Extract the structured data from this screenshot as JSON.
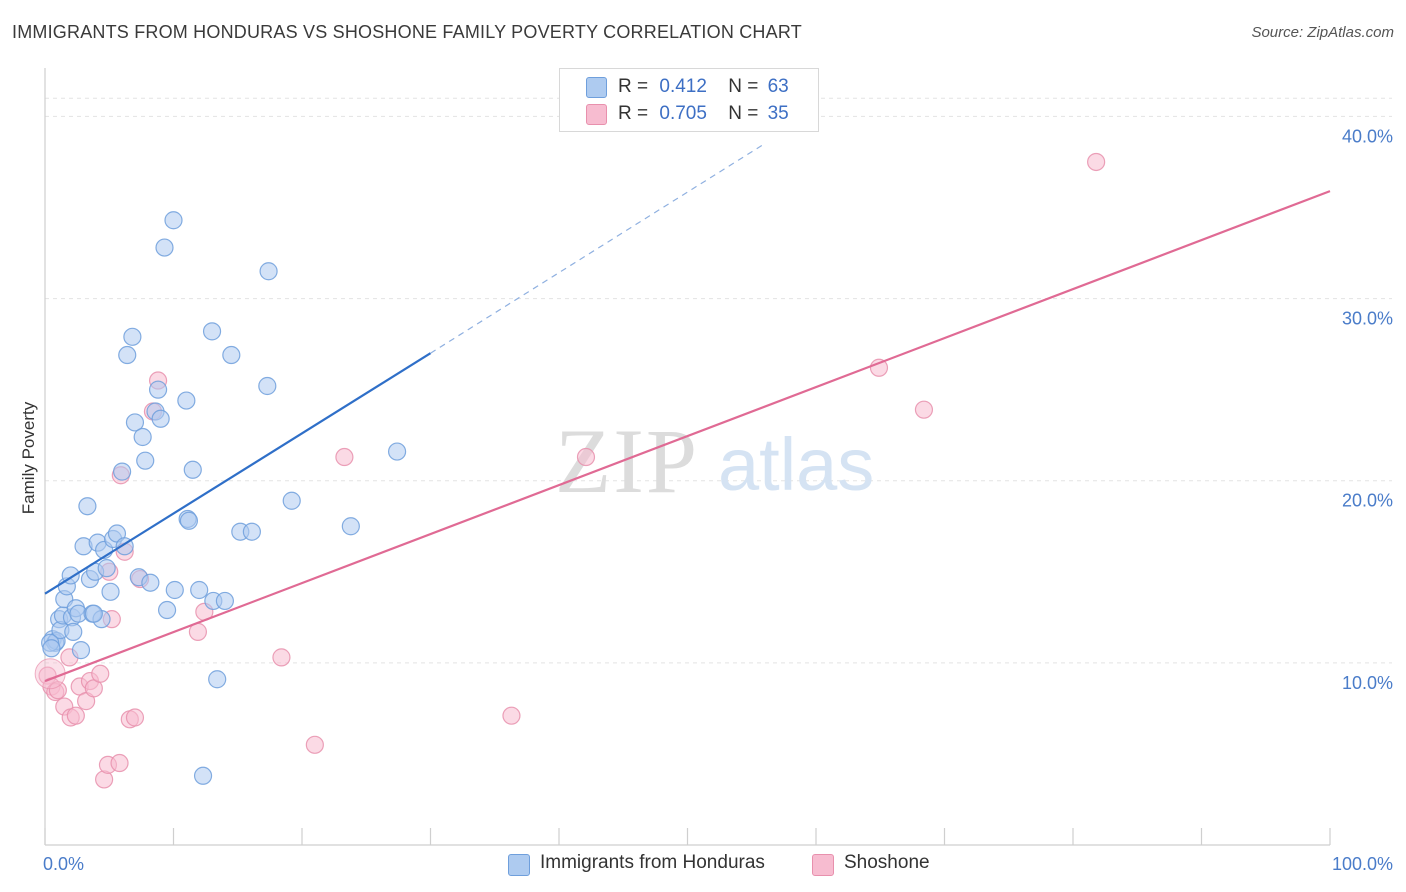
{
  "header": {
    "title": "IMMIGRANTS FROM HONDURAS VS SHOSHONE FAMILY POVERTY CORRELATION CHART",
    "source": "Source: ZipAtlas.com"
  },
  "legend": {
    "rows": [
      {
        "r_label": "R =",
        "r_value": "0.412",
        "n_label": "N =",
        "n_value": "63"
      },
      {
        "r_label": "R =",
        "r_value": "0.705",
        "n_label": "N =",
        "n_value": "35"
      }
    ]
  },
  "watermark": {
    "zip": "ZIP",
    "atlas": "atlas"
  },
  "colors": {
    "blue_fill": "#aecbf0",
    "blue_stroke": "#6f9fdc",
    "blue_line": "#2f6fc8",
    "pink_fill": "#f7bcd0",
    "pink_stroke": "#e890ad",
    "pink_line": "#e06a94",
    "tick_text": "#4a7cc9",
    "grid": "#e3e3e3"
  },
  "chart_data": {
    "type": "scatter",
    "title": "IMMIGRANTS FROM HONDURAS VS SHOSHONE FAMILY POVERTY CORRELATION CHART",
    "xlabel": "",
    "ylabel": "Family Poverty",
    "xlim": [
      0,
      100
    ],
    "ylim": [
      0,
      42
    ],
    "x_ticks": [
      "0.0%",
      "100.0%"
    ],
    "y_ticks": [
      {
        "value": 10,
        "label": "10.0%"
      },
      {
        "value": 20,
        "label": "20.0%"
      },
      {
        "value": 30,
        "label": "30.0%"
      },
      {
        "value": 40,
        "label": "40.0%"
      }
    ],
    "grid": true,
    "legend_position": "top-center",
    "series": [
      {
        "name": "Immigrants from Honduras",
        "color": "#aecbf0",
        "trend": {
          "x0": 0,
          "y0": 13.8,
          "x1": 30,
          "y1": 27.0,
          "dashed_to_x": 56,
          "dashed_to_y": 38.5
        },
        "points": [
          [
            0.6,
            11.3
          ],
          [
            0.8,
            11.1
          ],
          [
            0.9,
            11.2
          ],
          [
            1.1,
            12.4
          ],
          [
            1.2,
            11.8
          ],
          [
            1.4,
            12.6
          ],
          [
            1.5,
            13.5
          ],
          [
            1.7,
            14.2
          ],
          [
            2.0,
            14.8
          ],
          [
            2.1,
            12.5
          ],
          [
            2.2,
            11.7
          ],
          [
            2.4,
            13.0
          ],
          [
            2.6,
            12.7
          ],
          [
            2.8,
            10.7
          ],
          [
            3.0,
            16.4
          ],
          [
            3.3,
            18.6
          ],
          [
            3.5,
            14.6
          ],
          [
            3.7,
            12.7
          ],
          [
            3.9,
            15.0
          ],
          [
            4.1,
            16.6
          ],
          [
            4.4,
            12.4
          ],
          [
            4.6,
            16.2
          ],
          [
            4.8,
            15.2
          ],
          [
            5.1,
            13.9
          ],
          [
            5.3,
            16.8
          ],
          [
            5.6,
            17.1
          ],
          [
            6.0,
            20.5
          ],
          [
            6.2,
            16.4
          ],
          [
            6.4,
            26.9
          ],
          [
            6.8,
            27.9
          ],
          [
            7.0,
            23.2
          ],
          [
            7.3,
            14.7
          ],
          [
            7.6,
            22.4
          ],
          [
            7.8,
            21.1
          ],
          [
            8.2,
            14.4
          ],
          [
            8.6,
            23.8
          ],
          [
            8.8,
            25.0
          ],
          [
            9.0,
            23.4
          ],
          [
            9.5,
            12.9
          ],
          [
            9.3,
            32.8
          ],
          [
            10.0,
            34.3
          ],
          [
            10.1,
            14.0
          ],
          [
            11.1,
            17.9
          ],
          [
            11.2,
            17.8
          ],
          [
            11.0,
            24.4
          ],
          [
            11.5,
            20.6
          ],
          [
            12.0,
            14.0
          ],
          [
            12.3,
            3.8
          ],
          [
            13.0,
            28.2
          ],
          [
            13.1,
            13.4
          ],
          [
            13.4,
            9.1
          ],
          [
            14.0,
            13.4
          ],
          [
            14.5,
            26.9
          ],
          [
            15.2,
            17.2
          ],
          [
            16.1,
            17.2
          ],
          [
            17.3,
            25.2
          ],
          [
            17.4,
            31.5
          ],
          [
            19.2,
            18.9
          ],
          [
            23.8,
            17.5
          ],
          [
            27.4,
            21.6
          ],
          [
            0.4,
            11.1
          ],
          [
            0.5,
            10.8
          ],
          [
            3.8,
            12.7
          ]
        ]
      },
      {
        "name": "Shoshone",
        "color": "#f7bcd0",
        "trend": {
          "x0": 0,
          "y0": 9.0,
          "x1": 100,
          "y1": 35.9
        },
        "points": [
          [
            0.2,
            9.3
          ],
          [
            0.5,
            8.7
          ],
          [
            0.8,
            8.4
          ],
          [
            1.0,
            8.5
          ],
          [
            1.5,
            7.6
          ],
          [
            1.9,
            10.3
          ],
          [
            2.0,
            7.0
          ],
          [
            2.4,
            7.1
          ],
          [
            2.7,
            8.7
          ],
          [
            3.2,
            7.9
          ],
          [
            3.5,
            9.0
          ],
          [
            3.8,
            8.6
          ],
          [
            4.3,
            9.4
          ],
          [
            4.6,
            3.6
          ],
          [
            4.9,
            4.4
          ],
          [
            5.2,
            12.4
          ],
          [
            5.8,
            4.5
          ],
          [
            6.2,
            16.1
          ],
          [
            5.9,
            20.3
          ],
          [
            6.6,
            6.9
          ],
          [
            7.0,
            7.0
          ],
          [
            7.4,
            14.6
          ],
          [
            8.4,
            23.8
          ],
          [
            8.8,
            25.5
          ],
          [
            11.9,
            11.7
          ],
          [
            12.4,
            12.8
          ],
          [
            18.4,
            10.3
          ],
          [
            21.0,
            5.5
          ],
          [
            23.3,
            21.3
          ],
          [
            36.3,
            7.1
          ],
          [
            42.1,
            21.3
          ],
          [
            64.9,
            26.2
          ],
          [
            68.4,
            23.9
          ],
          [
            81.8,
            37.5
          ],
          [
            5.0,
            15.0
          ]
        ]
      }
    ]
  },
  "bottom_legend": {
    "items": [
      {
        "label": "Immigrants from Honduras"
      },
      {
        "label": "Shoshone"
      }
    ]
  }
}
